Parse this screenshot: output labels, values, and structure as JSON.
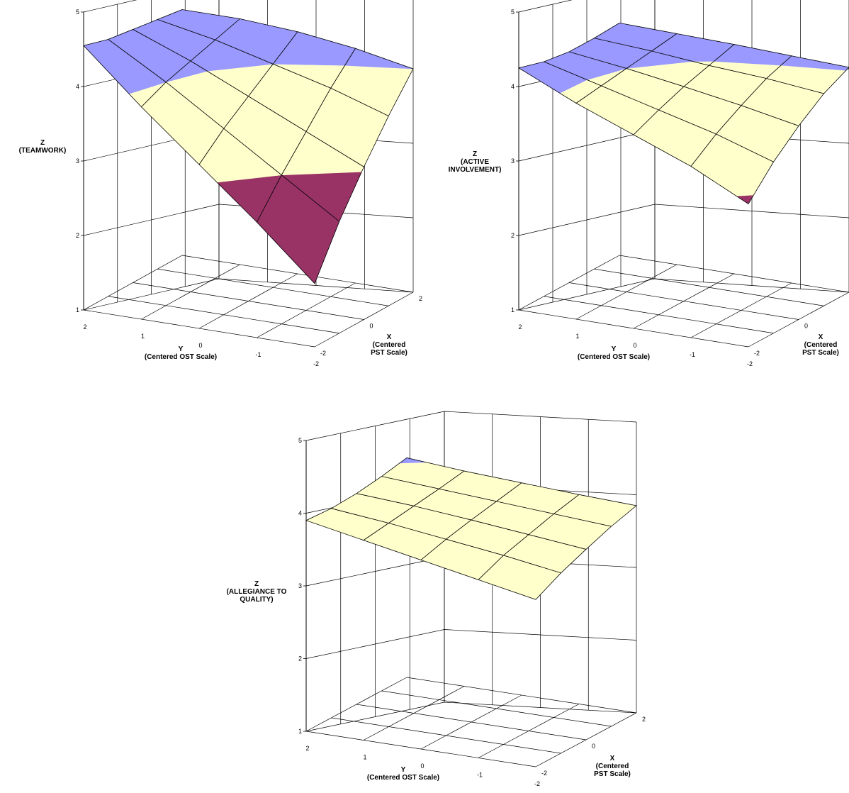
{
  "chart_data": [
    {
      "type": "surface",
      "zlabel": [
        "Z",
        "(TEAMWORK)"
      ],
      "ylabel": [
        "Y",
        "(Centered OST Scale)"
      ],
      "xlabel": [
        "X",
        "(Centered",
        "PST Scale)"
      ],
      "z_ticks": [
        "1",
        "2",
        "3",
        "4",
        "5"
      ],
      "y_ticks": [
        "2",
        "1",
        "0",
        "-1",
        "-2"
      ],
      "x_ticks": [
        "2",
        "0",
        "-2"
      ],
      "zlim": [
        1,
        5
      ],
      "x": [
        -2,
        -1,
        0,
        1,
        2
      ],
      "y": [
        -2,
        -1,
        0,
        1,
        2
      ],
      "z": [
        [
          1.85,
          2.55,
          3.2,
          3.85,
          4.55
        ],
        [
          2.5,
          3.0,
          3.5,
          4.0,
          4.45
        ],
        [
          3.05,
          3.4,
          3.75,
          4.1,
          4.4
        ],
        [
          3.55,
          3.8,
          4.0,
          4.2,
          4.35
        ],
        [
          4.0,
          4.15,
          4.25,
          4.3,
          4.3
        ]
      ],
      "bands": [
        {
          "range": "1-3",
          "color": "#993366"
        },
        {
          "range": "3-4",
          "color": "#ffffcc"
        },
        {
          "range": "4-5",
          "color": "#9999ff"
        }
      ]
    },
    {
      "type": "surface",
      "zlabel": [
        "Z",
        "(ACTIVE",
        "INVOLVEMENT)"
      ],
      "ylabel": [
        "Y",
        "(Centered OST Scale)"
      ],
      "xlabel": [
        "X",
        "(Centered",
        "PST Scale)"
      ],
      "z_ticks": [
        "1",
        "2",
        "3",
        "4",
        "5"
      ],
      "y_ticks": [
        "2",
        "1",
        "0",
        "-1",
        "-2"
      ],
      "x_ticks": [
        "2",
        "0",
        "-2"
      ],
      "zlim": [
        1,
        5
      ],
      "x": [
        -2,
        -1,
        0,
        1,
        2
      ],
      "y": [
        -2,
        -1,
        0,
        1,
        2
      ],
      "z": [
        [
          2.92,
          3.3,
          3.6,
          3.9,
          4.25
        ],
        [
          3.3,
          3.55,
          3.75,
          3.95,
          4.15
        ],
        [
          3.6,
          3.75,
          3.88,
          4.0,
          4.1
        ],
        [
          3.85,
          3.93,
          3.98,
          4.05,
          4.1
        ],
        [
          4.02,
          4.05,
          4.08,
          4.1,
          4.12
        ]
      ],
      "bands": [
        {
          "range": "1-3",
          "color": "#993366"
        },
        {
          "range": "3-4",
          "color": "#ffffcc"
        },
        {
          "range": "4-5",
          "color": "#9999ff"
        }
      ]
    },
    {
      "type": "surface",
      "zlabel": [
        "Z",
        "(ALLEGIANCE TO",
        "QUALITY)"
      ],
      "ylabel": [
        "Y",
        "(Centered OST Scale)"
      ],
      "xlabel": [
        "X",
        "(Centered",
        "PST Scale)"
      ],
      "z_ticks": [
        "1",
        "2",
        "3",
        "4",
        "5"
      ],
      "y_ticks": [
        "2",
        "1",
        "0",
        "-1",
        "-2"
      ],
      "x_ticks": [
        "2",
        "0",
        "-2"
      ],
      "zlim": [
        1,
        5
      ],
      "x": [
        -2,
        -1,
        0,
        1,
        2
      ],
      "y": [
        -2,
        -1,
        0,
        1,
        2
      ],
      "z": [
        [
          3.3,
          3.45,
          3.6,
          3.75,
          3.9
        ],
        [
          3.48,
          3.6,
          3.7,
          3.8,
          3.88
        ],
        [
          3.62,
          3.7,
          3.78,
          3.85,
          3.9
        ],
        [
          3.75,
          3.8,
          3.85,
          3.9,
          3.95
        ],
        [
          3.85,
          3.88,
          3.92,
          3.96,
          4.02
        ]
      ],
      "bands": [
        {
          "range": "1-3",
          "color": "#993366"
        },
        {
          "range": "3-4",
          "color": "#ffffcc"
        },
        {
          "range": "4-5",
          "color": "#9999ff"
        }
      ]
    }
  ]
}
